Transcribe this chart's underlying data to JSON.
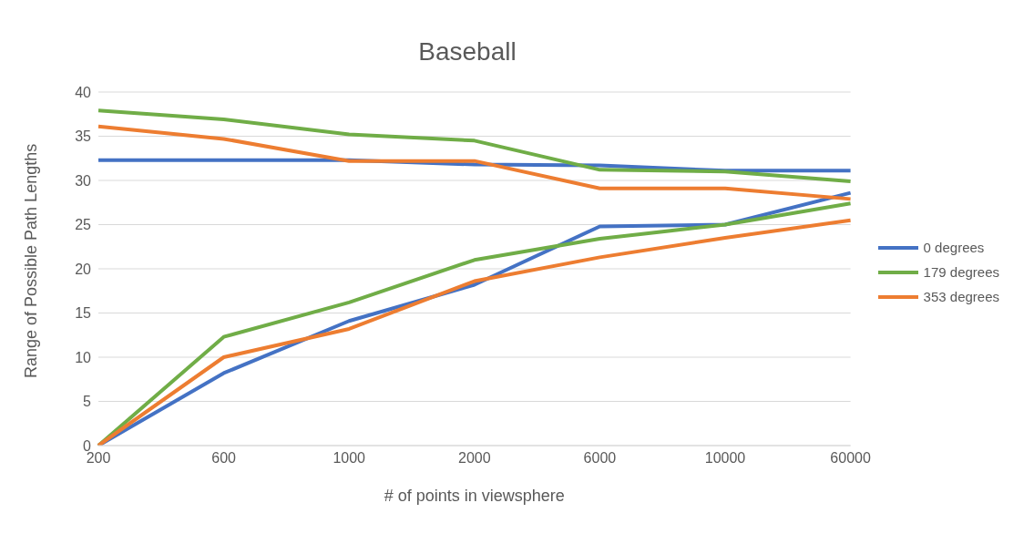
{
  "chart_data": {
    "type": "line",
    "title": "Baseball",
    "xlabel": "# of points in viewsphere",
    "ylabel": "Range of Possible Path Lengths",
    "categories": [
      "200",
      "600",
      "1000",
      "2000",
      "6000",
      "10000",
      "60000"
    ],
    "ylim": [
      0,
      40
    ],
    "yticks": [
      0,
      5,
      10,
      15,
      20,
      25,
      30,
      35,
      40
    ],
    "grid": "y",
    "legend": "right",
    "marker": "none",
    "line_style": "solid",
    "series": [
      {
        "name": "0 degrees",
        "color": "#4472c4",
        "values": [
          32.3,
          32.3,
          32.3,
          31.8,
          31.7,
          31.1,
          31.1
        ]
      },
      {
        "color": "#4472c4",
        "values": [
          0,
          8.2,
          14.1,
          18.2,
          24.8,
          25.0,
          28.6
        ]
      },
      {
        "name": "179 degrees",
        "color": "#70ad47",
        "values": [
          37.9,
          36.9,
          35.2,
          34.5,
          31.2,
          31.0,
          29.9
        ]
      },
      {
        "color": "#70ad47",
        "values": [
          0,
          12.3,
          16.2,
          21.0,
          23.4,
          25.0,
          27.4
        ]
      },
      {
        "name": "353 degrees",
        "color": "#ed7d31",
        "values": [
          36.1,
          34.7,
          32.2,
          32.2,
          29.1,
          29.1,
          27.9
        ]
      },
      {
        "color": "#ed7d31",
        "values": [
          0,
          10.0,
          13.2,
          18.6,
          21.3,
          23.5,
          25.5
        ]
      }
    ]
  }
}
